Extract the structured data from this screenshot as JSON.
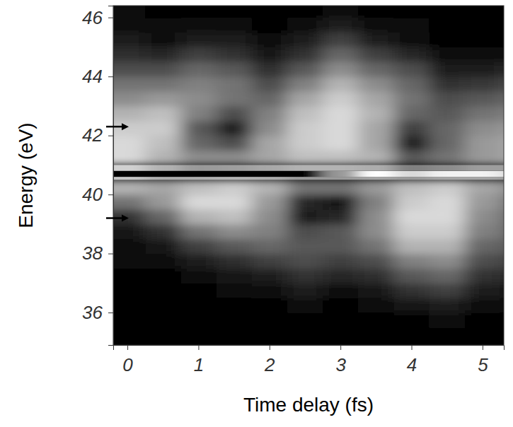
{
  "chart_data": {
    "type": "heatmap",
    "x_label": "Time delay (fs)",
    "y_label": "Energy (eV)",
    "xlim": [
      -0.2,
      5.3
    ],
    "ylim": [
      34.9,
      46.4
    ],
    "xticks": [
      0,
      1,
      2,
      3,
      4,
      5
    ],
    "yticks": [
      36,
      38,
      40,
      42,
      44,
      46
    ],
    "zlim": [
      0,
      1
    ],
    "arrows": [
      42.3,
      39.2
    ],
    "x_edges": [
      -0.5,
      0.25,
      0.75,
      1.25,
      1.75,
      2.25,
      2.75,
      3.25,
      3.75,
      4.25,
      4.75,
      5.25,
      5.75
    ],
    "y_edges": [
      34.5,
      35,
      35.5,
      36,
      36.5,
      37,
      37.5,
      38,
      38.5,
      39,
      39.5,
      40,
      40.5,
      40.6,
      40.8,
      41,
      41.5,
      42,
      42.5,
      43,
      43.5,
      44,
      44.5,
      45,
      45.5,
      46,
      46.5
    ],
    "cells": [
      [
        0.02,
        0.02,
        0.02,
        0.02,
        0.02,
        0.02,
        0.02,
        0.02,
        0.02,
        0.02,
        0.02,
        0.02
      ],
      [
        0.02,
        0.02,
        0.02,
        0.02,
        0.02,
        0.02,
        0.02,
        0.02,
        0.02,
        0.02,
        0.02,
        0.02
      ],
      [
        0.02,
        0.02,
        0.02,
        0.02,
        0.02,
        0.02,
        0.02,
        0.02,
        0.02,
        0.05,
        0.02,
        0.02
      ],
      [
        0.02,
        0.02,
        0.02,
        0.02,
        0.02,
        0.04,
        0.02,
        0.03,
        0.08,
        0.12,
        0.04,
        0.03
      ],
      [
        0.02,
        0.02,
        0.02,
        0.03,
        0.05,
        0.1,
        0.06,
        0.08,
        0.2,
        0.25,
        0.1,
        0.08
      ],
      [
        0.02,
        0.02,
        0.03,
        0.08,
        0.12,
        0.2,
        0.15,
        0.18,
        0.35,
        0.4,
        0.2,
        0.15
      ],
      [
        0.03,
        0.04,
        0.1,
        0.18,
        0.25,
        0.3,
        0.25,
        0.3,
        0.5,
        0.55,
        0.3,
        0.25
      ],
      [
        0.04,
        0.08,
        0.25,
        0.35,
        0.4,
        0.35,
        0.35,
        0.45,
        0.7,
        0.7,
        0.4,
        0.35
      ],
      [
        0.08,
        0.2,
        0.45,
        0.55,
        0.5,
        0.3,
        0.35,
        0.55,
        0.8,
        0.8,
        0.5,
        0.4
      ],
      [
        0.2,
        0.4,
        0.7,
        0.75,
        0.55,
        0.12,
        0.15,
        0.55,
        0.85,
        0.85,
        0.55,
        0.4
      ],
      [
        0.45,
        0.6,
        0.85,
        0.85,
        0.6,
        0.15,
        0.08,
        0.5,
        0.8,
        0.85,
        0.6,
        0.45
      ],
      [
        0.7,
        0.65,
        0.75,
        0.8,
        0.7,
        0.45,
        0.45,
        0.6,
        0.75,
        0.8,
        0.65,
        0.55
      ],
      [
        0.78,
        0.68,
        0.68,
        0.7,
        0.68,
        0.6,
        0.6,
        0.65,
        0.6,
        0.65,
        0.65,
        0.6
      ],
      [
        0.02,
        0.02,
        0.02,
        0.02,
        0.02,
        0.02,
        0.6,
        1.0,
        0.85,
        0.95,
        0.95,
        0.85
      ],
      [
        0.82,
        0.7,
        0.6,
        0.62,
        0.66,
        0.7,
        0.7,
        0.68,
        0.5,
        0.55,
        0.62,
        0.62
      ],
      [
        0.85,
        0.7,
        0.55,
        0.55,
        0.65,
        0.75,
        0.75,
        0.7,
        0.35,
        0.45,
        0.6,
        0.65
      ],
      [
        0.85,
        0.75,
        0.4,
        0.3,
        0.65,
        0.8,
        0.85,
        0.65,
        0.1,
        0.4,
        0.6,
        0.65
      ],
      [
        0.8,
        0.8,
        0.35,
        0.12,
        0.55,
        0.8,
        0.85,
        0.65,
        0.25,
        0.4,
        0.55,
        0.6
      ],
      [
        0.7,
        0.75,
        0.5,
        0.3,
        0.5,
        0.75,
        0.85,
        0.7,
        0.4,
        0.35,
        0.45,
        0.5
      ],
      [
        0.55,
        0.6,
        0.55,
        0.45,
        0.4,
        0.65,
        0.8,
        0.65,
        0.45,
        0.3,
        0.35,
        0.4
      ],
      [
        0.45,
        0.45,
        0.5,
        0.45,
        0.3,
        0.5,
        0.7,
        0.55,
        0.4,
        0.2,
        0.22,
        0.28
      ],
      [
        0.3,
        0.3,
        0.4,
        0.35,
        0.18,
        0.35,
        0.55,
        0.4,
        0.3,
        0.1,
        0.12,
        0.15
      ],
      [
        0.18,
        0.15,
        0.25,
        0.2,
        0.08,
        0.2,
        0.4,
        0.25,
        0.15,
        0.04,
        0.05,
        0.06
      ],
      [
        0.1,
        0.06,
        0.12,
        0.1,
        0.03,
        0.1,
        0.25,
        0.12,
        0.06,
        0.02,
        0.02,
        0.02
      ],
      [
        0.05,
        0.03,
        0.05,
        0.04,
        0.02,
        0.04,
        0.12,
        0.05,
        0.03,
        0.02,
        0.02,
        0.02
      ],
      [
        0.03,
        0.02,
        0.02,
        0.02,
        0.02,
        0.02,
        0.05,
        0.02,
        0.02,
        0.02,
        0.02,
        0.02
      ]
    ]
  }
}
